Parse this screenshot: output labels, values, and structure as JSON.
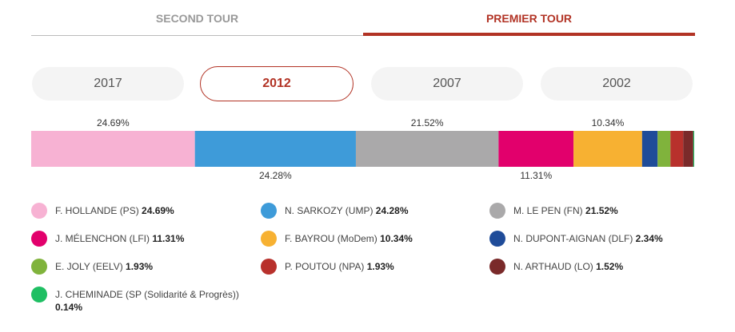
{
  "tabs": {
    "second": "SECOND TOUR",
    "first": "PREMIER TOUR"
  },
  "years": [
    "2017",
    "2012",
    "2007",
    "2002"
  ],
  "active_year": "2012",
  "chart_data": {
    "type": "bar",
    "stacked": true,
    "orientation": "horizontal",
    "series": [
      {
        "name": "F. HOLLANDE (PS)",
        "value": 24.69,
        "label": "24.69%",
        "color": "#f7b2d3",
        "label_pos": "top"
      },
      {
        "name": "N. SARKOZY (UMP)",
        "value": 24.28,
        "label": "24.28%",
        "color": "#3e9bd9",
        "label_pos": "bottom"
      },
      {
        "name": "M. LE PEN (FN)",
        "value": 21.52,
        "label": "21.52%",
        "color": "#aaa9aa",
        "label_pos": "top"
      },
      {
        "name": "J. MÉLENCHON (LFI)",
        "value": 11.31,
        "label": "11.31%",
        "color": "#e2006c",
        "label_pos": "bottom"
      },
      {
        "name": "F. BAYROU (MoDem)",
        "value": 10.34,
        "label": "10.34%",
        "color": "#f7b132",
        "label_pos": "top"
      },
      {
        "name": "N. DUPONT-AIGNAN (DLF)",
        "value": 2.34,
        "label": "2.34%",
        "color": "#1f4c99",
        "label_pos": "none"
      },
      {
        "name": "E. JOLY (EELV)",
        "value": 1.93,
        "label": "1.93%",
        "color": "#80b33c",
        "label_pos": "none"
      },
      {
        "name": "P. POUTOU (NPA)",
        "value": 1.93,
        "label": "1.93%",
        "color": "#b8312c",
        "label_pos": "none"
      },
      {
        "name": "N. ARTHAUD (LO)",
        "value": 1.52,
        "label": "1.52%",
        "color": "#7a2a2a",
        "label_pos": "none"
      },
      {
        "name": "J. CHEMINADE (SP (Solidarité & Progrès))",
        "value": 0.14,
        "label": "0.14%",
        "color": "#1fbf63",
        "label_pos": "none"
      }
    ]
  }
}
